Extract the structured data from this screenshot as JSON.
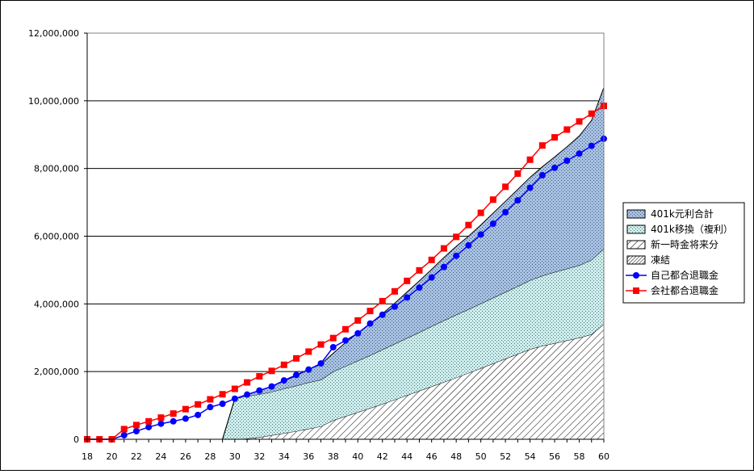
{
  "chart_data": {
    "type": "area",
    "title": "",
    "xlabel": "",
    "ylabel": "",
    "xlim": [
      18,
      60
    ],
    "ylim": [
      0,
      12000000
    ],
    "grid": "horizontal",
    "legend_position": "right",
    "x_tick_labels": [
      "18",
      "20",
      "22",
      "24",
      "26",
      "28",
      "30",
      "32",
      "34",
      "36",
      "38",
      "40",
      "42",
      "44",
      "46",
      "48",
      "50",
      "52",
      "54",
      "56",
      "58",
      "60"
    ],
    "y_tick_labels": [
      "0",
      "2,000,000",
      "4,000,000",
      "6,000,000",
      "8,000,000",
      "10,000,000",
      "12,000,000"
    ],
    "x": [
      18,
      19,
      20,
      21,
      22,
      23,
      24,
      25,
      26,
      27,
      28,
      29,
      30,
      31,
      32,
      33,
      34,
      35,
      36,
      37,
      38,
      39,
      40,
      41,
      42,
      43,
      44,
      45,
      46,
      47,
      48,
      49,
      50,
      51,
      52,
      53,
      54,
      55,
      56,
      57,
      58,
      59,
      60
    ],
    "stacked_area": [
      {
        "name": "凍結",
        "color": "#ffffff",
        "pattern": "dense-hatch",
        "values": [
          0,
          0,
          0,
          0,
          0,
          0,
          0,
          0,
          0,
          0,
          0,
          0,
          0,
          0,
          0,
          0,
          0,
          0,
          0,
          0,
          0,
          0,
          0,
          0,
          0,
          0,
          0,
          0,
          0,
          0,
          0,
          0,
          0,
          0,
          0,
          0,
          0,
          0,
          0,
          0,
          0,
          0,
          0
        ]
      },
      {
        "name": "新一時金将来分",
        "color": "#ffffff",
        "pattern": "hatch",
        "values": [
          0,
          0,
          0,
          0,
          0,
          0,
          0,
          0,
          0,
          0,
          0,
          0,
          0,
          20000,
          60000,
          120000,
          180000,
          240000,
          310000,
          380000,
          560000,
          680000,
          800000,
          920000,
          1040000,
          1170000,
          1300000,
          1430000,
          1560000,
          1690000,
          1820000,
          1960000,
          2100000,
          2240000,
          2380000,
          2520000,
          2660000,
          2760000,
          2840000,
          2920000,
          3000000,
          3100000,
          3400000
        ]
      },
      {
        "name": "401k移換（複利）",
        "color": "#ccefef",
        "pattern": "dots",
        "values": [
          0,
          0,
          0,
          0,
          0,
          0,
          0,
          0,
          0,
          0,
          0,
          0,
          1200000,
          1260000,
          1270000,
          1280000,
          1320000,
          1340000,
          1370000,
          1380000,
          1440000,
          1480000,
          1520000,
          1560000,
          1610000,
          1650000,
          1690000,
          1730000,
          1780000,
          1820000,
          1860000,
          1880000,
          1910000,
          1940000,
          1970000,
          2000000,
          2040000,
          2070000,
          2100000,
          2120000,
          2140000,
          2200000,
          2230000
        ]
      },
      {
        "name": "401k元利合計",
        "color": "#a6c2e6",
        "pattern": "dots",
        "values": [
          0,
          0,
          0,
          0,
          0,
          0,
          0,
          0,
          0,
          0,
          0,
          0,
          0,
          50000,
          100000,
          160000,
          220000,
          300000,
          380000,
          460000,
          540000,
          700000,
          820000,
          940000,
          1060000,
          1200000,
          1360000,
          1520000,
          1680000,
          1860000,
          2020000,
          2160000,
          2320000,
          2500000,
          2680000,
          2860000,
          3040000,
          3220000,
          3400000,
          3600000,
          3820000,
          4120000,
          4760000
        ]
      }
    ],
    "series": [
      {
        "name": "自己都合退職金",
        "type": "line",
        "color": "#0000ff",
        "marker": "circle",
        "values": [
          0,
          0,
          0,
          120000,
          240000,
          360000,
          460000,
          530000,
          610000,
          720000,
          950000,
          1050000,
          1200000,
          1320000,
          1440000,
          1560000,
          1740000,
          1900000,
          2060000,
          2240000,
          2720000,
          2920000,
          3130000,
          3420000,
          3680000,
          3920000,
          4190000,
          4480000,
          4780000,
          5090000,
          5420000,
          5730000,
          6050000,
          6370000,
          6710000,
          7060000,
          7430000,
          7800000,
          8020000,
          8230000,
          8440000,
          8670000,
          8880000
        ]
      },
      {
        "name": "会社都合退職金",
        "type": "line",
        "color": "#ff0000",
        "marker": "square",
        "values": [
          0,
          0,
          0,
          300000,
          420000,
          530000,
          640000,
          760000,
          890000,
          1030000,
          1180000,
          1330000,
          1490000,
          1680000,
          1860000,
          2020000,
          2200000,
          2390000,
          2590000,
          2800000,
          2990000,
          3250000,
          3510000,
          3790000,
          4080000,
          4370000,
          4680000,
          4990000,
          5300000,
          5640000,
          5980000,
          6330000,
          6690000,
          7080000,
          7460000,
          7850000,
          8260000,
          8680000,
          8920000,
          9150000,
          9390000,
          9620000,
          9850000
        ]
      }
    ],
    "legend": [
      {
        "label": "401k元利合計",
        "kind": "area",
        "color": "#a6c2e6",
        "pattern": "dots"
      },
      {
        "label": "401k移換（複利）",
        "kind": "area",
        "color": "#ccefef",
        "pattern": "dots"
      },
      {
        "label": "新一時金将来分",
        "kind": "area",
        "color": "#ffffff",
        "pattern": "hatch"
      },
      {
        "label": "凍結",
        "kind": "area",
        "color": "#ffffff",
        "pattern": "dense-hatch"
      },
      {
        "label": "自己都合退職金",
        "kind": "line",
        "color": "#0000ff",
        "marker": "circle"
      },
      {
        "label": "会社都合退職金",
        "kind": "line",
        "color": "#ff0000",
        "marker": "square"
      }
    ]
  }
}
